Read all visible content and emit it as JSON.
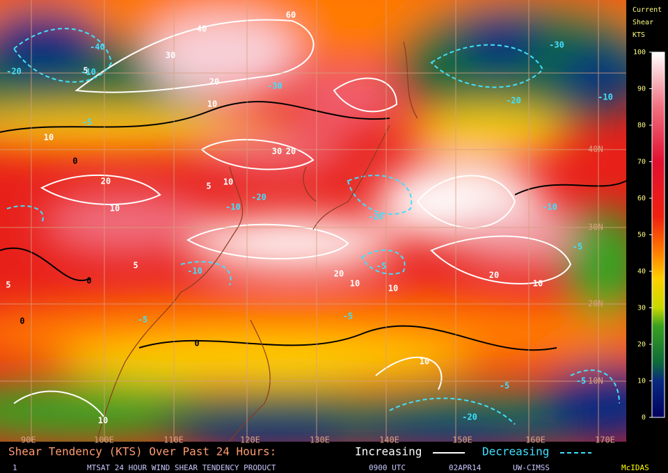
{
  "colorbar": {
    "title": [
      "Current",
      "Shear",
      "KTS"
    ],
    "ticks": [
      100,
      90,
      80,
      70,
      60,
      50,
      40,
      30,
      20,
      10,
      0
    ]
  },
  "longitude_labels": [
    "90E",
    "100E",
    "110E",
    "120E",
    "130E",
    "140E",
    "150E",
    "160E",
    "170E"
  ],
  "latitude_labels": [
    "40N",
    "30N",
    "20N",
    "10N"
  ],
  "contour_labels": [
    "60",
    "40",
    "30",
    "20",
    "10",
    "10",
    "5",
    "-20",
    "-30",
    "-40",
    "-10",
    "-5",
    "30",
    "20",
    "10",
    "5",
    "0",
    "-10",
    "-20",
    "20",
    "10",
    "5",
    "-5",
    "-10",
    "20",
    "10",
    "-5",
    "0",
    "10",
    "-5",
    "-10",
    "-20",
    "20",
    "10",
    "-5",
    "10",
    "-20",
    "-10",
    "-30",
    "-20",
    "-5",
    "10",
    "-5",
    "0",
    "5",
    "0"
  ],
  "legend": {
    "title": "Shear Tendency (KTS) Over Past 24 Hours:",
    "increasing": "Increasing",
    "decreasing": "Decreasing"
  },
  "footer": {
    "frame": "1",
    "product": "MTSAT 24 HOUR WIND SHEAR TENDENCY PRODUCT",
    "time": "0900 UTC",
    "date": "02APR14",
    "source": "UW-CIMSS",
    "software": "McIDAS"
  }
}
